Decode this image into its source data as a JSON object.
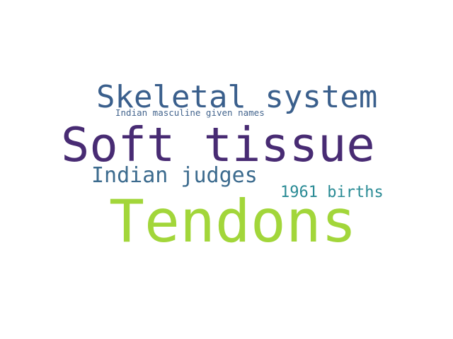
{
  "words": [
    {
      "text": "Skeletal system",
      "color": "#3a5f8c"
    },
    {
      "text": "Indian masculine given names",
      "color": "#43648d"
    },
    {
      "text": "Soft tissue",
      "color": "#482b73"
    },
    {
      "text": "Indian judges",
      "color": "#3c6b8e"
    },
    {
      "text": "1961 births",
      "color": "#2a8b95"
    },
    {
      "text": "Tendons",
      "color": "#a2d63a"
    }
  ]
}
